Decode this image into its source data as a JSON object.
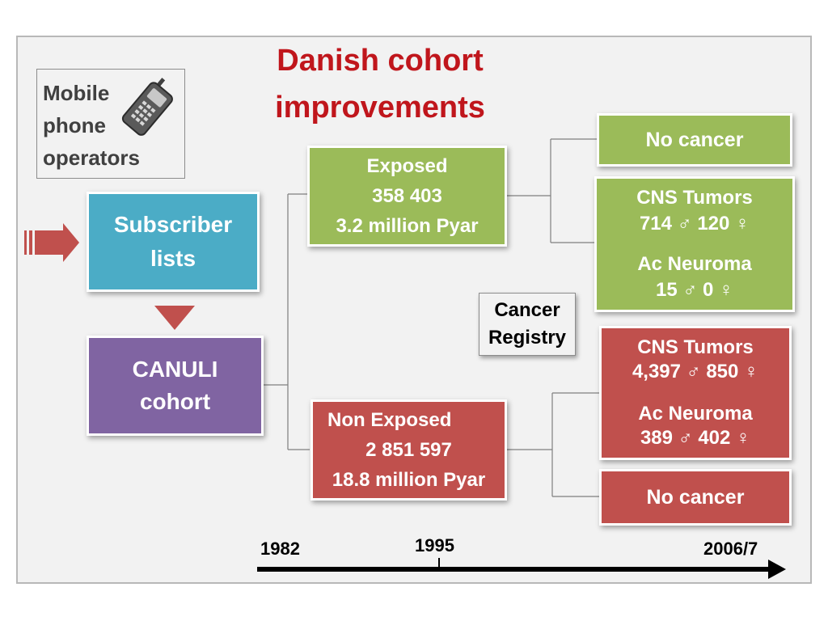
{
  "title": "Danish cohort improvements",
  "mobile_operators": {
    "lines": [
      "Mobile",
      "phone",
      "operators"
    ]
  },
  "subscriber": {
    "lines": [
      "Subscriber",
      "lists"
    ]
  },
  "canuli": {
    "lines": [
      "CANULI",
      "cohort"
    ]
  },
  "exposed": {
    "lines": [
      "Exposed",
      "358 403",
      "3.2 million Pyar"
    ]
  },
  "non_exposed": {
    "lines": [
      "Non Exposed",
      "2 851 597",
      "18.8 million Pyar"
    ]
  },
  "cancer_registry": {
    "lines": [
      "Cancer",
      "Registry"
    ]
  },
  "exposed_no_cancer": "No cancer",
  "exposed_cancer": {
    "cns_title": "CNS Tumors",
    "cns_counts": "714 ♂  120 ♀",
    "acn_title": "Ac Neuroma",
    "acn_counts": "15 ♂  0 ♀"
  },
  "non_exposed_cancer": {
    "cns_title": "CNS Tumors",
    "cns_counts": "4,397 ♂  850 ♀",
    "acn_title": "Ac Neuroma",
    "acn_counts": "389 ♂  402 ♀"
  },
  "non_exposed_no_cancer": "No cancer",
  "timeline": {
    "start": "1982",
    "mid": "1995",
    "end": "2006/7"
  },
  "colors": {
    "title": "#c0161c",
    "subscriber": "#4bacc6",
    "canuli": "#8064a2",
    "exposed": "#9bbb59",
    "non_exposed": "#c0504d"
  },
  "icons": [
    "mobile-phone-icon",
    "right-arrow-icon",
    "down-triangle-icon",
    "timeline-arrow-icon"
  ]
}
